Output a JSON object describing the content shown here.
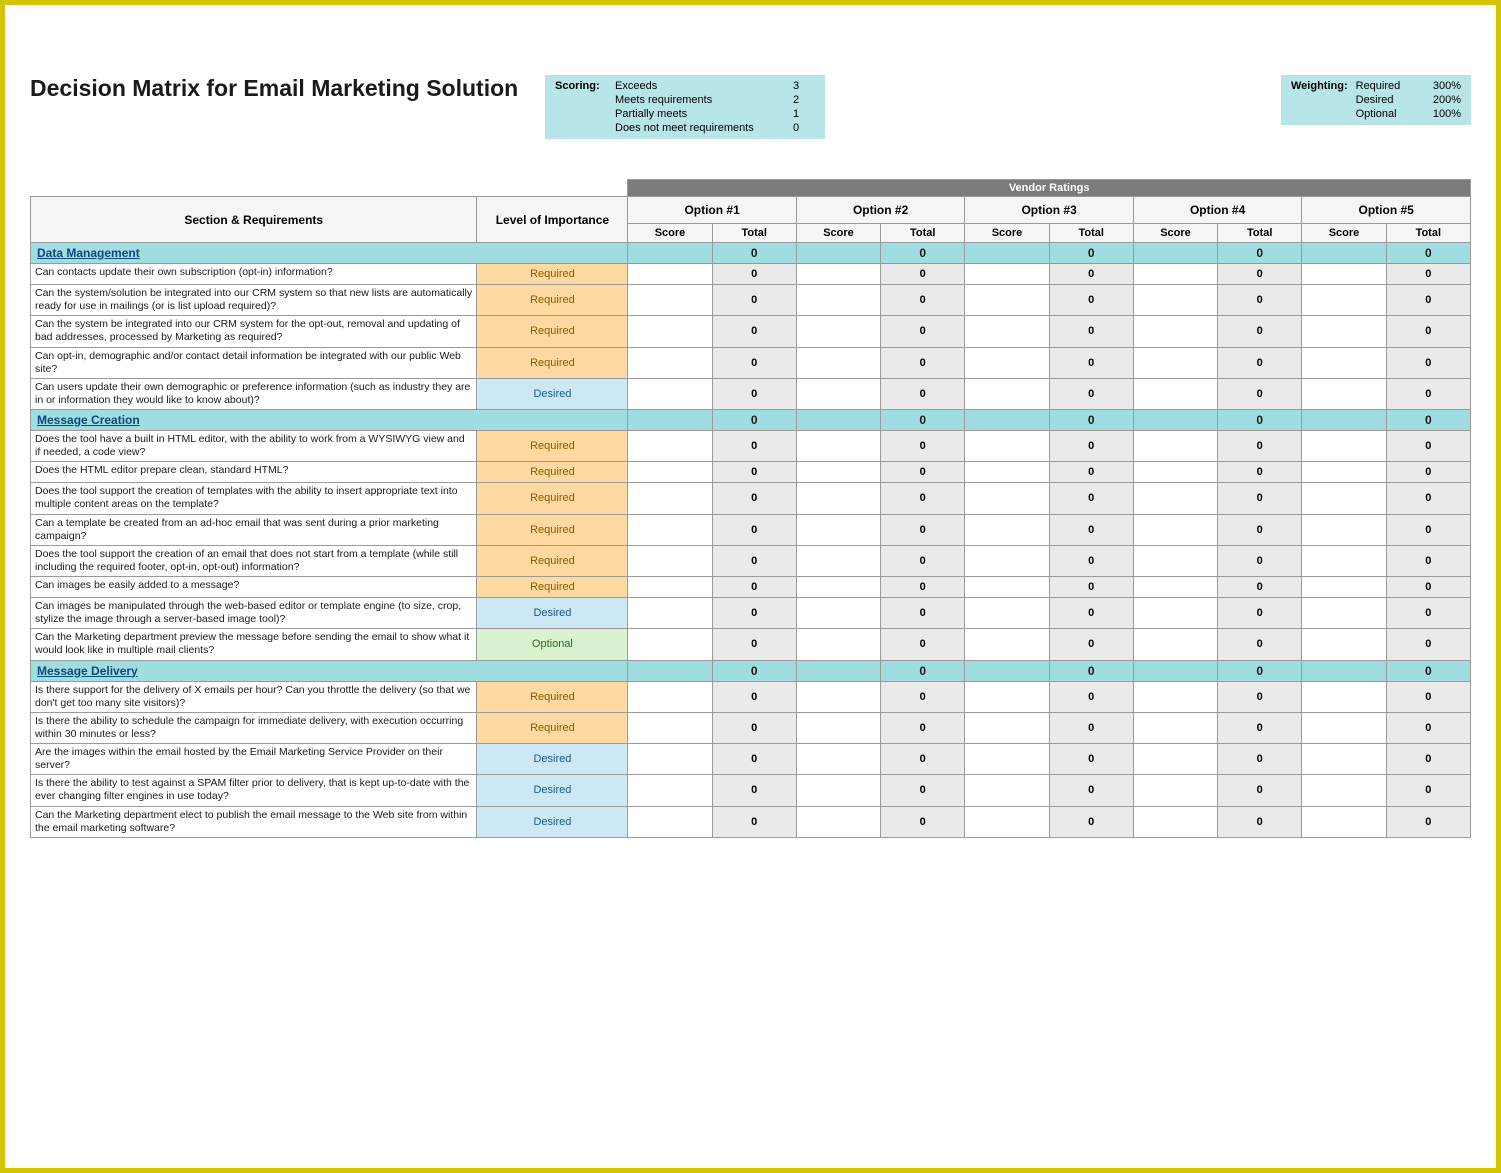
{
  "title": "Decision Matrix for Email Marketing Solution",
  "scoring": {
    "label": "Scoring:",
    "rows": [
      {
        "text": "Exceeds",
        "value": "3"
      },
      {
        "text": "Meets requirements",
        "value": "2"
      },
      {
        "text": "Partially meets",
        "value": "1"
      },
      {
        "text": "Does not meet requirements",
        "value": "0"
      }
    ]
  },
  "weighting": {
    "label": "Weighting:",
    "rows": [
      {
        "text": "Required",
        "value": "300%"
      },
      {
        "text": "Desired",
        "value": "200%"
      },
      {
        "text": "Optional",
        "value": "100%"
      }
    ]
  },
  "colors": {
    "border_outer": "#d4c400",
    "legend_bg": "#b8e5e8",
    "dark_band": "#7b7b7b",
    "section_bg": "#9fdde1",
    "section_text": "#0b4a7a",
    "required_bg": "#ffd9a0",
    "required_text": "#8a5a00",
    "desired_bg": "#cce8f5",
    "desired_text": "#1a5a8a",
    "optional_bg": "#d9f2d0",
    "optional_text": "#2a6a1a",
    "total_bg": "#eaeaea",
    "border": "#9a9a9a"
  },
  "matrix": {
    "vendor_header": "Vendor Ratings",
    "section_header": "Section & Requirements",
    "level_header": "Level of Importance",
    "options": [
      "Option #1",
      "Option #2",
      "Option #3",
      "Option #4",
      "Option #5"
    ],
    "sub": {
      "score": "Score",
      "total": "Total"
    },
    "sections": [
      {
        "name": "Data Management",
        "totals": [
          "0",
          "0",
          "0",
          "0",
          "0"
        ],
        "rows": [
          {
            "req": "Can contacts update their own subscription (opt-in) information?",
            "level": "Required",
            "scores": [
              "",
              "",
              "",
              "",
              ""
            ],
            "totals": [
              "0",
              "0",
              "0",
              "0",
              "0"
            ]
          },
          {
            "req": "Can the system/solution be integrated into our CRM system so that new lists are automatically ready for use in mailings (or is list upload required)?",
            "level": "Required",
            "scores": [
              "",
              "",
              "",
              "",
              ""
            ],
            "totals": [
              "0",
              "0",
              "0",
              "0",
              "0"
            ]
          },
          {
            "req": "Can the system be integrated into our CRM system for the opt-out, removal and updating of bad addresses, processed by Marketing as required?",
            "level": "Required",
            "scores": [
              "",
              "",
              "",
              "",
              ""
            ],
            "totals": [
              "0",
              "0",
              "0",
              "0",
              "0"
            ]
          },
          {
            "req": "Can opt-in, demographic and/or contact detail information be integrated with our public Web site?",
            "level": "Required",
            "scores": [
              "",
              "",
              "",
              "",
              ""
            ],
            "totals": [
              "0",
              "0",
              "0",
              "0",
              "0"
            ]
          },
          {
            "req": "Can users update their own demographic or preference information (such as industry they are in or information they would like to know about)?",
            "level": "Desired",
            "scores": [
              "",
              "",
              "",
              "",
              ""
            ],
            "totals": [
              "0",
              "0",
              "0",
              "0",
              "0"
            ]
          }
        ]
      },
      {
        "name": "Message Creation",
        "totals": [
          "0",
          "0",
          "0",
          "0",
          "0"
        ],
        "rows": [
          {
            "req": "Does the tool have a built in HTML editor, with the ability to work from a WYSIWYG view and if needed, a code view?",
            "level": "Required",
            "scores": [
              "",
              "",
              "",
              "",
              ""
            ],
            "totals": [
              "0",
              "0",
              "0",
              "0",
              "0"
            ]
          },
          {
            "req": "Does the HTML editor prepare clean, standard HTML?",
            "level": "Required",
            "scores": [
              "",
              "",
              "",
              "",
              ""
            ],
            "totals": [
              "0",
              "0",
              "0",
              "0",
              "0"
            ]
          },
          {
            "req": "Does the tool support the creation of templates with the ability to insert appropriate text into multiple content areas on the template?",
            "level": "Required",
            "scores": [
              "",
              "",
              "",
              "",
              ""
            ],
            "totals": [
              "0",
              "0",
              "0",
              "0",
              "0"
            ]
          },
          {
            "req": "Can a template be created from an ad-hoc email that was sent during a prior marketing campaign?",
            "level": "Required",
            "scores": [
              "",
              "",
              "",
              "",
              ""
            ],
            "totals": [
              "0",
              "0",
              "0",
              "0",
              "0"
            ]
          },
          {
            "req": "Does the tool support the creation of an email that does not start from a template (while still including the required footer, opt-in, opt-out) information?",
            "level": "Required",
            "scores": [
              "",
              "",
              "",
              "",
              ""
            ],
            "totals": [
              "0",
              "0",
              "0",
              "0",
              "0"
            ]
          },
          {
            "req": "Can images be easily added to a message?",
            "level": "Required",
            "scores": [
              "",
              "",
              "",
              "",
              ""
            ],
            "totals": [
              "0",
              "0",
              "0",
              "0",
              "0"
            ]
          },
          {
            "req": "Can images be manipulated through the web-based editor or template engine (to size, crop, stylize the image through a server-based image tool)?",
            "level": "Desired",
            "scores": [
              "",
              "",
              "",
              "",
              ""
            ],
            "totals": [
              "0",
              "0",
              "0",
              "0",
              "0"
            ]
          },
          {
            "req": "Can the Marketing department preview the message before sending the email to show what it would look like in multiple mail clients?",
            "level": "Optional",
            "scores": [
              "",
              "",
              "",
              "",
              ""
            ],
            "totals": [
              "0",
              "0",
              "0",
              "0",
              "0"
            ]
          }
        ]
      },
      {
        "name": "Message Delivery",
        "totals": [
          "0",
          "0",
          "0",
          "0",
          "0"
        ],
        "rows": [
          {
            "req": "Is there support for the delivery of X emails per hour?  Can you throttle the delivery (so that we don't get too many site visitors)?",
            "level": "Required",
            "scores": [
              "",
              "",
              "",
              "",
              ""
            ],
            "totals": [
              "0",
              "0",
              "0",
              "0",
              "0"
            ]
          },
          {
            "req": "Is there the ability to schedule the campaign for immediate delivery, with execution occurring within 30 minutes or less?",
            "level": "Required",
            "scores": [
              "",
              "",
              "",
              "",
              ""
            ],
            "totals": [
              "0",
              "0",
              "0",
              "0",
              "0"
            ]
          },
          {
            "req": "Are the images within the email hosted by the Email Marketing Service Provider on their server?",
            "level": "Desired",
            "scores": [
              "",
              "",
              "",
              "",
              ""
            ],
            "totals": [
              "0",
              "0",
              "0",
              "0",
              "0"
            ]
          },
          {
            "req": "Is there the ability to test against a SPAM filter prior to delivery, that is kept up-to-date with the ever changing filter engines in use today?",
            "level": "Desired",
            "scores": [
              "",
              "",
              "",
              "",
              ""
            ],
            "totals": [
              "0",
              "0",
              "0",
              "0",
              "0"
            ]
          },
          {
            "req": "Can the Marketing department elect to publish the email message to the Web site from within the email marketing software?",
            "level": "Desired",
            "scores": [
              "",
              "",
              "",
              "",
              ""
            ],
            "totals": [
              "0",
              "0",
              "0",
              "0",
              "0"
            ]
          }
        ]
      }
    ]
  }
}
